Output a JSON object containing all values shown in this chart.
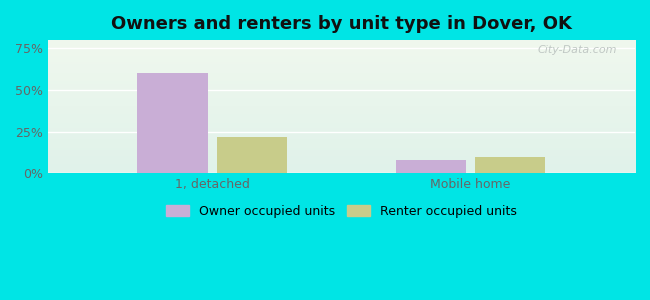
{
  "title": "Owners and renters by unit type in Dover, OK",
  "categories": [
    "1, detached",
    "Mobile home"
  ],
  "owner_values": [
    60.0,
    8.0
  ],
  "renter_values": [
    22.0,
    10.0
  ],
  "owner_color": "#c9aed6",
  "renter_color": "#c8cc8a",
  "yticks": [
    0,
    25,
    50,
    75
  ],
  "ytick_labels": [
    "0%",
    "25%",
    "50%",
    "75%"
  ],
  "ymax": 80,
  "bg_color": "#00e5e5",
  "legend_owner": "Owner occupied units",
  "legend_renter": "Renter occupied units",
  "bar_width": 0.12,
  "group_centers": [
    0.28,
    0.72
  ],
  "xlim": [
    0,
    1
  ],
  "grad_top_color": "#f0f8ee",
  "grad_bottom_color": "#e0f2ea"
}
